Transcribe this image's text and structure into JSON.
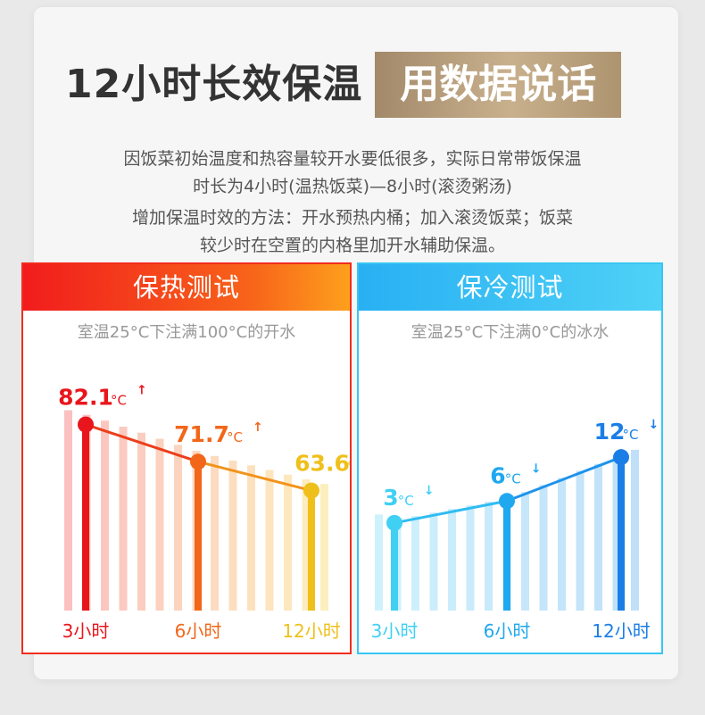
{
  "headline": {
    "main": "12小时长效保温",
    "tag": "用数据说话"
  },
  "description": {
    "line1": "因饭菜初始温度和热容量较开水要低很多，实际日常带饭保温",
    "line2": "时长为4小时(温热饭菜)—8小时(滚烫粥汤)",
    "line3": "增加保温时效的方法：开水预热内桶；加入滚烫饭菜；饭菜",
    "line4": "较少时在空置的内格里加开水辅助保温。"
  },
  "hot_test": {
    "title": "保热测试",
    "subtitle": "室温25°C下注满100°C的开水",
    "color_start": "#f01c1c",
    "color_end": "#f5c518"
  },
  "cold_test": {
    "title": "保冷测试",
    "subtitle": "室温25°C下注满0°C的冰水",
    "color_start": "#4fcff5",
    "color_end": "#1b8fe8"
  },
  "chart_data": [
    {
      "type": "line",
      "title": "保热测试",
      "categories": [
        "3小时",
        "6小时",
        "12小时"
      ],
      "series": [
        {
          "values": [
            82.1,
            71.7,
            63.6
          ],
          "labels": [
            "82.1",
            "71.7",
            "63.6"
          ],
          "colors": [
            "#e8161c",
            "#f2661a",
            "#efc01b"
          ]
        }
      ],
      "unit": "°C",
      "arrow": "↑",
      "ylim": [
        30,
        100
      ]
    },
    {
      "type": "line",
      "title": "保冷测试",
      "categories": [
        "3小时",
        "6小时",
        "12小时"
      ],
      "series": [
        {
          "values": [
            3,
            6,
            12
          ],
          "labels": [
            "3",
            "6",
            "12"
          ],
          "colors": [
            "#3fd0f4",
            "#1fa8ef",
            "#1b7ee6"
          ]
        }
      ],
      "unit": "°C",
      "arrow": "↓",
      "ylim": [
        -9,
        24
      ]
    }
  ]
}
